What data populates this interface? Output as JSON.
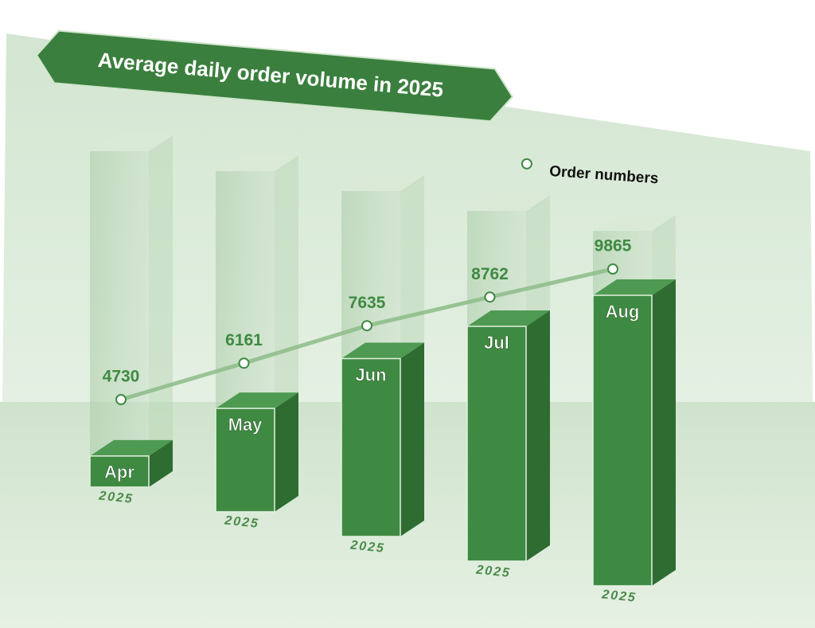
{
  "chart_data": {
    "type": "bar",
    "title": "Average daily order volume in 2025",
    "categories": [
      "Apr",
      "May",
      "Jun",
      "Jul",
      "Aug"
    ],
    "sublabels": [
      "2025",
      "2025",
      "2025",
      "2025",
      "2025"
    ],
    "series": [
      {
        "name": "Order numbers",
        "color": "#3f8a42",
        "values": [
          4730,
          6161,
          7635,
          8762,
          9865
        ]
      }
    ],
    "line_color": "#8cbc88",
    "legend": "upper right"
  }
}
